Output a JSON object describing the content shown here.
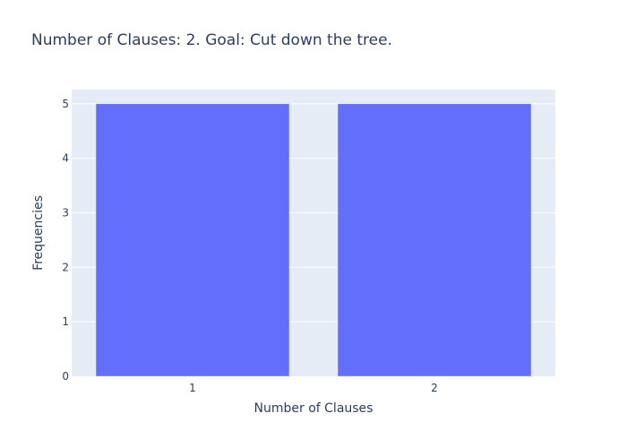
{
  "chart_data": {
    "type": "bar",
    "title": "Number of Clauses: 2. Goal: Cut down the tree.",
    "xlabel": "Number of Clauses",
    "ylabel": "Frequencies",
    "categories": [
      "1",
      "2"
    ],
    "values": [
      5,
      5
    ],
    "ylim": [
      0,
      5.26
    ],
    "yticks": [
      0,
      1,
      2,
      3,
      4,
      5
    ],
    "grid": true,
    "legend": "none",
    "colors": {
      "bar": "#636efa",
      "plot_background": "#e5ecf6",
      "gridline": "#ffffff",
      "text": "#2a3f5f"
    }
  }
}
